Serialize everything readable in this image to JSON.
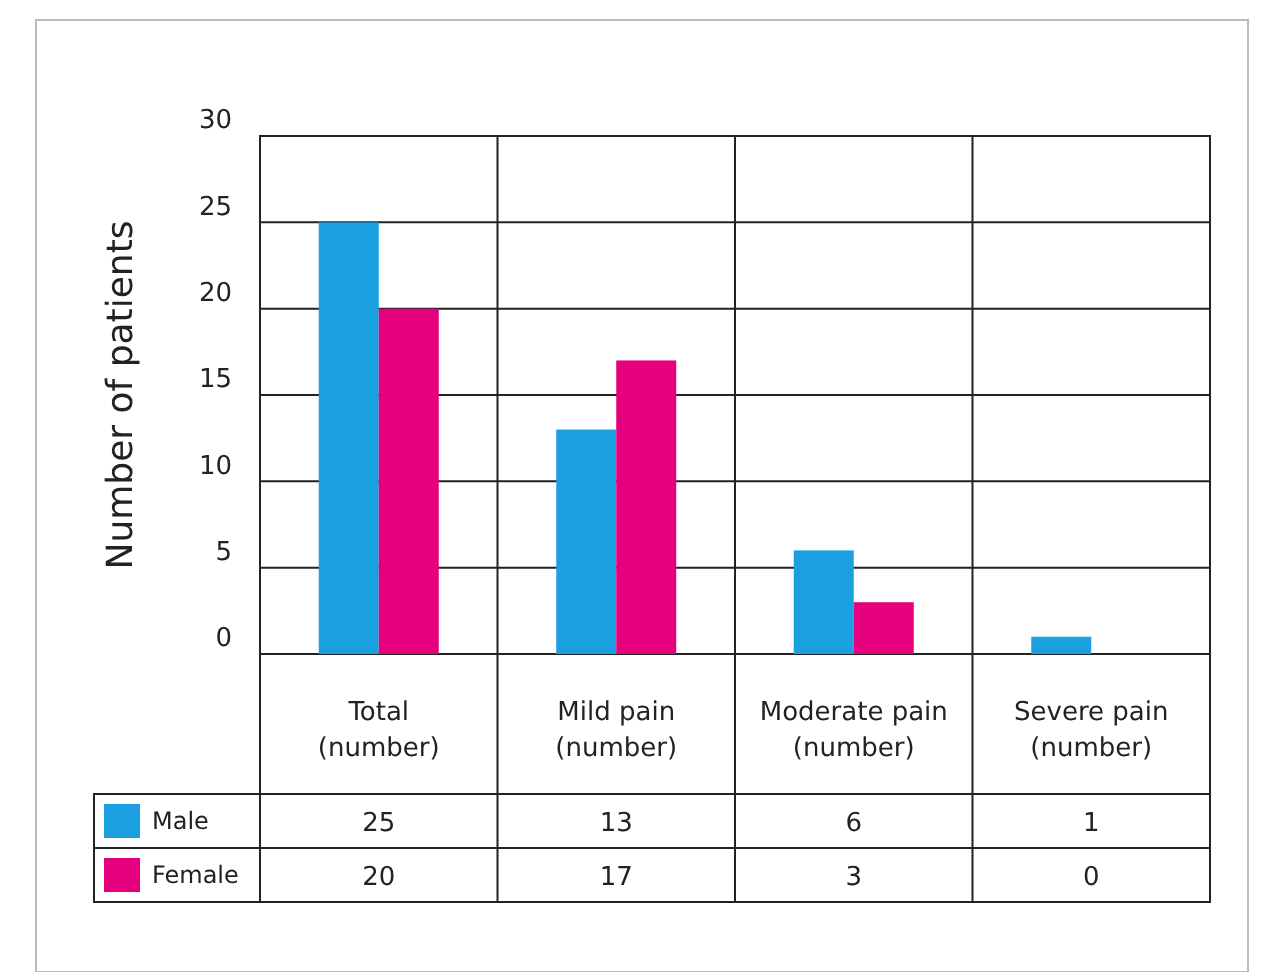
{
  "chart_data": {
    "type": "bar",
    "ylabel": "Number of patients",
    "categories": [
      "Total (number)",
      "Mild pain (number)",
      "Moderate pain (number)",
      "Severe pain (number)"
    ],
    "series": [
      {
        "name": "Male",
        "color": "#1a9fe0",
        "values": [
          25,
          13,
          6,
          1
        ]
      },
      {
        "name": "Female",
        "color": "#e5007d",
        "values": [
          20,
          17,
          3,
          0
        ]
      }
    ],
    "data_labels": true,
    "ylim": [
      0,
      30
    ],
    "yticks": [
      0,
      5,
      10,
      15,
      20,
      25,
      30
    ],
    "grid": "y",
    "legend": "bottom"
  }
}
